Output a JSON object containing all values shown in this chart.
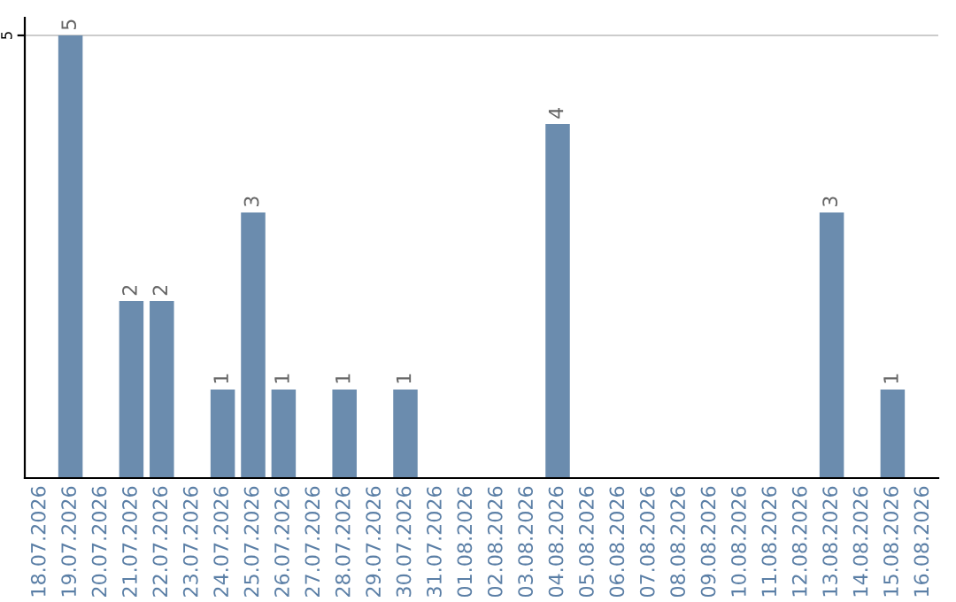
{
  "chart_data": {
    "type": "bar",
    "categories": [
      "18.07.2026",
      "19.07.2026",
      "20.07.2026",
      "21.07.2026",
      "22.07.2026",
      "23.07.2026",
      "24.07.2026",
      "25.07.2026",
      "26.07.2026",
      "27.07.2026",
      "28.07.2026",
      "29.07.2026",
      "30.07.2026",
      "31.07.2026",
      "01.08.2026",
      "02.08.2026",
      "03.08.2026",
      "04.08.2026",
      "05.08.2026",
      "06.08.2026",
      "07.08.2026",
      "08.08.2026",
      "09.08.2026",
      "10.08.2026",
      "11.08.2026",
      "12.08.2026",
      "13.08.2026",
      "14.08.2026",
      "15.08.2026",
      "16.08.2026"
    ],
    "values": [
      0,
      5,
      0,
      2,
      2,
      0,
      1,
      3,
      1,
      0,
      1,
      0,
      1,
      0,
      0,
      0,
      0,
      4,
      0,
      0,
      0,
      0,
      0,
      0,
      0,
      0,
      3,
      0,
      1,
      0
    ],
    "color": "#6b8cae",
    "value_labels": [
      null,
      "5",
      null,
      "2",
      "2",
      null,
      "1",
      "3",
      "1",
      null,
      "1",
      null,
      "1",
      null,
      null,
      null,
      null,
      "4",
      null,
      null,
      null,
      null,
      null,
      null,
      null,
      null,
      "3",
      null,
      "1",
      null
    ],
    "ylim": [
      0,
      5.2
    ],
    "yticks": [
      5
    ],
    "grid": "y",
    "legend": false
  }
}
